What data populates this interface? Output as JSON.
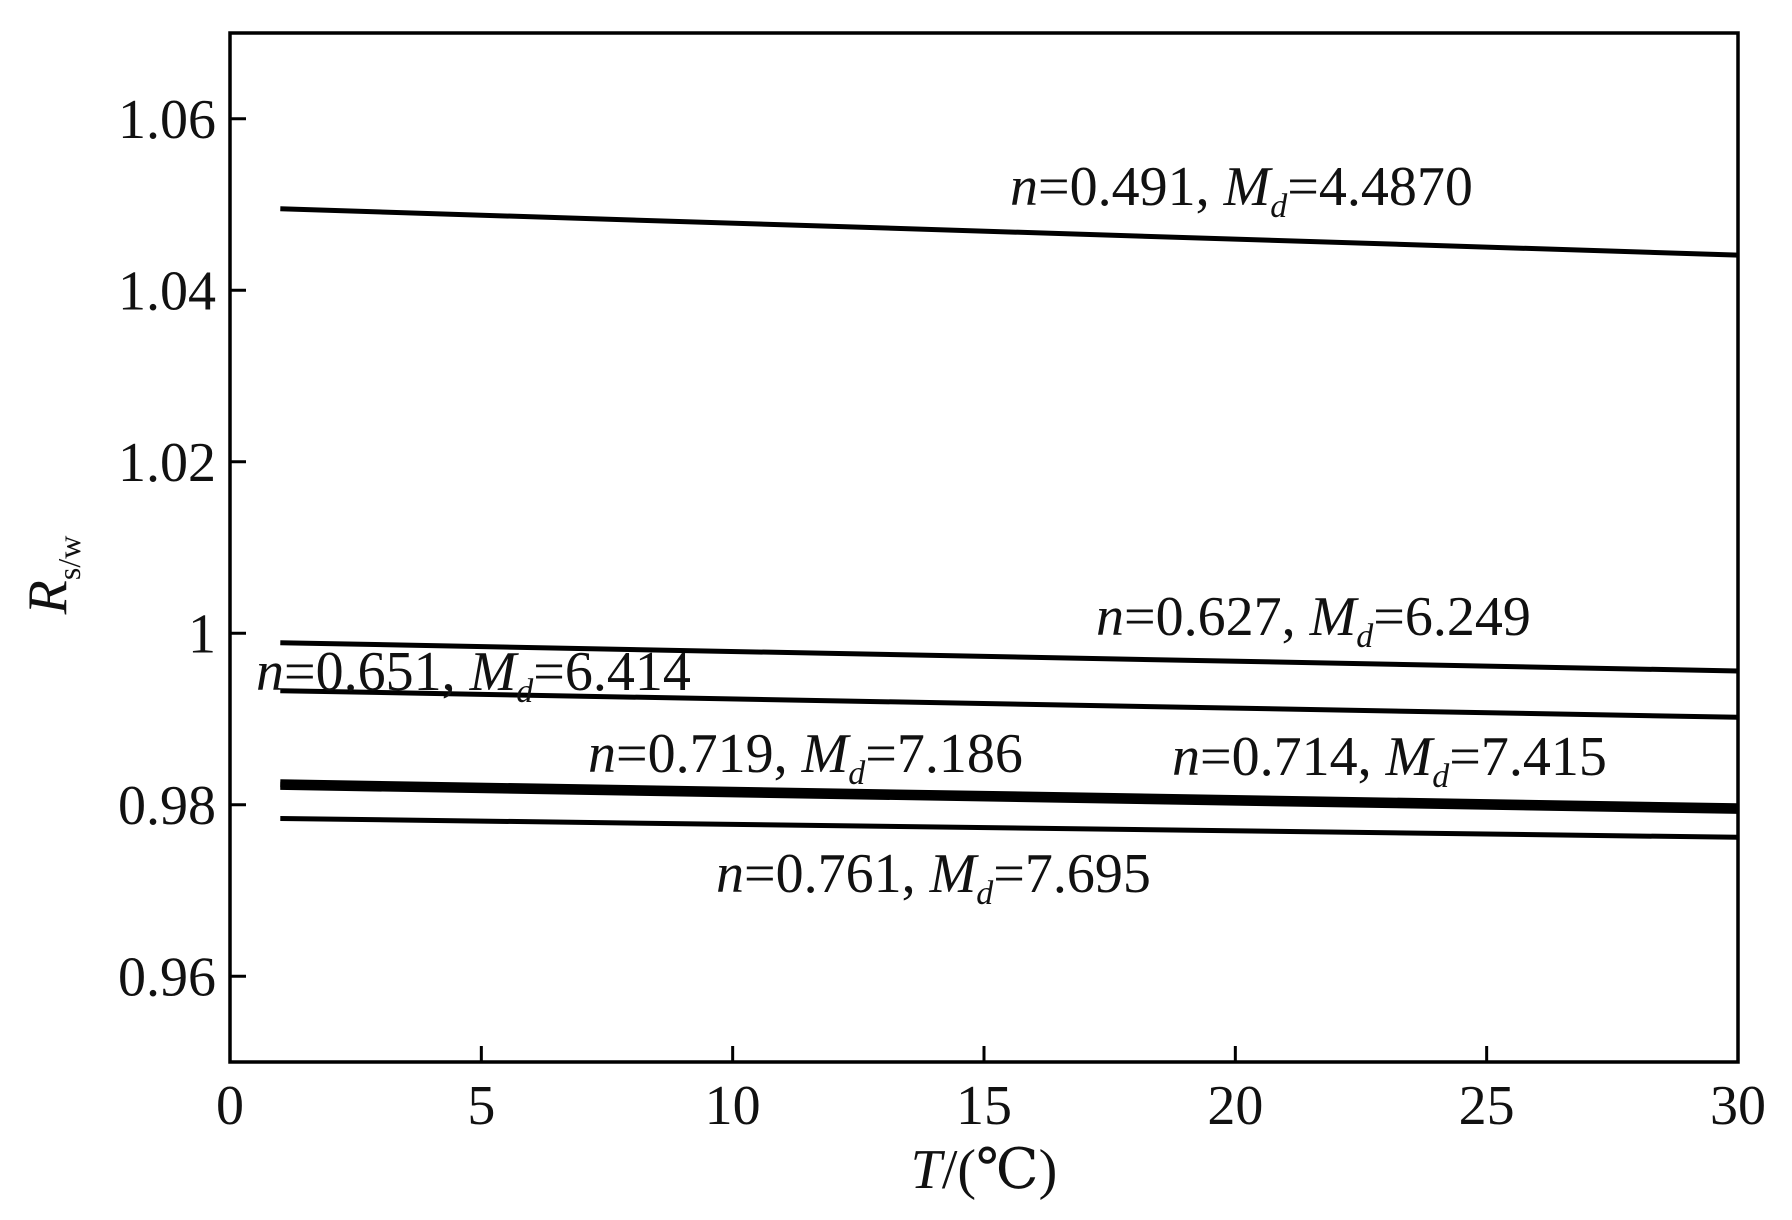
{
  "chart_data": {
    "type": "line",
    "title": "",
    "xlabel": {
      "var": "T",
      "unit": "/(℃)"
    },
    "ylabel": {
      "var": "R",
      "sub": "s/w"
    },
    "xlim": [
      0,
      30
    ],
    "ylim": [
      0.95,
      1.07
    ],
    "xticks": [
      0,
      5,
      10,
      15,
      20,
      25,
      30
    ],
    "xtick_labels": [
      "0",
      "5",
      "10",
      "15",
      "20",
      "25",
      "30"
    ],
    "yticks": [
      0.96,
      0.98,
      1.0,
      1.02,
      1.04,
      1.06
    ],
    "ytick_labels": [
      "0.96",
      "0.98",
      "1",
      "1.02",
      "1.04",
      "1.06"
    ],
    "grid": false,
    "legend": "none",
    "line_color": "#000000",
    "x": [
      1,
      30
    ],
    "series": [
      {
        "values": [
          1.0495,
          1.0441
        ],
        "annotation": {
          "n_label": "n",
          "n_value": "=0.491, ",
          "m_label": "M",
          "m_sub": "d",
          "m_value": "=4.4870"
        }
      },
      {
        "values": [
          0.9989,
          0.9956
        ],
        "annotation": {
          "n_label": "n",
          "n_value": "=0.627, ",
          "m_label": "M",
          "m_sub": "d",
          "m_value": "=6.249"
        }
      },
      {
        "values": [
          0.9933,
          0.9902
        ],
        "annotation": {
          "n_label": "n",
          "n_value": "=0.651, ",
          "m_label": "M",
          "m_sub": "d",
          "m_value": "=6.414"
        }
      },
      {
        "values": [
          0.9825,
          0.9797
        ],
        "annotation": {
          "n_label": "n",
          "n_value": "=0.719, ",
          "m_label": "M",
          "m_sub": "d",
          "m_value": "=7.186"
        }
      },
      {
        "values": [
          0.9822,
          0.9794
        ],
        "annotation": {
          "n_label": "n",
          "n_value": "=0.714, ",
          "m_label": "M",
          "m_sub": "d",
          "m_value": "=7.415"
        }
      },
      {
        "values": [
          0.9784,
          0.9762
        ],
        "annotation": {
          "n_label": "n",
          "n_value": "=0.761, ",
          "m_label": "M",
          "m_sub": "d",
          "m_value": "=7.695"
        }
      }
    ]
  }
}
